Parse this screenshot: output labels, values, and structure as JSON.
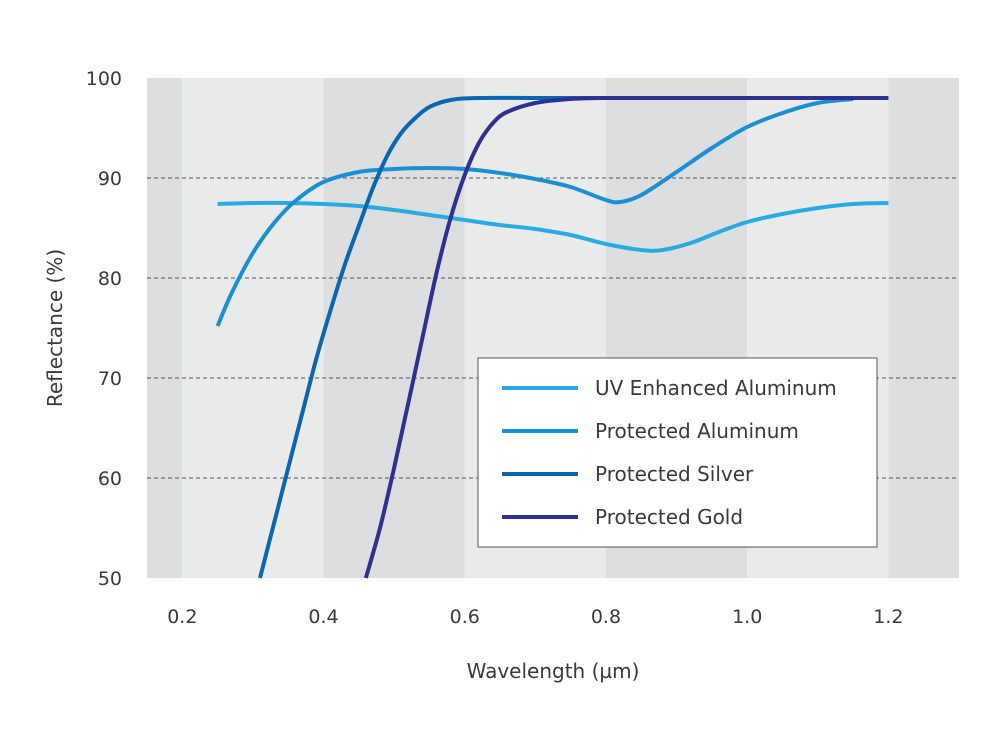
{
  "chart_data": {
    "type": "line",
    "title": "",
    "xlabel": "Wavelength (µm)",
    "ylabel": "Reflectance (%)",
    "xlim": [
      0.15,
      1.3
    ],
    "ylim": [
      50,
      100
    ],
    "x_ticks": [
      0.2,
      0.4,
      0.6,
      0.8,
      1.0,
      1.2
    ],
    "x_tick_labels": [
      "0.2",
      "0.4",
      "0.6",
      "0.8",
      "1.0",
      "1.2"
    ],
    "y_ticks": [
      50,
      60,
      70,
      80,
      90,
      100
    ],
    "y_tick_labels": [
      "50",
      "60",
      "70",
      "80",
      "90",
      "100"
    ],
    "grid": "dashed horizontal lines at 60, 70, 80 and 90",
    "background_bands": "alternating shaded vertical bands every 0.2 µm",
    "legend_position": "lower-right",
    "series": [
      {
        "name": "UV Enhanced Aluminum",
        "color": "#29abe2",
        "points": [
          [
            0.25,
            87.4
          ],
          [
            0.3,
            87.5
          ],
          [
            0.35,
            87.5
          ],
          [
            0.4,
            87.4
          ],
          [
            0.45,
            87.2
          ],
          [
            0.5,
            86.8
          ],
          [
            0.55,
            86.3
          ],
          [
            0.6,
            85.8
          ],
          [
            0.65,
            85.3
          ],
          [
            0.7,
            84.9
          ],
          [
            0.75,
            84.3
          ],
          [
            0.8,
            83.4
          ],
          [
            0.85,
            82.8
          ],
          [
            0.88,
            82.8
          ],
          [
            0.92,
            83.5
          ],
          [
            0.96,
            84.6
          ],
          [
            1.0,
            85.6
          ],
          [
            1.05,
            86.4
          ],
          [
            1.1,
            87.0
          ],
          [
            1.15,
            87.4
          ],
          [
            1.2,
            87.5
          ]
        ]
      },
      {
        "name": "Protected Aluminum",
        "color": "#1b8fd2",
        "points": [
          [
            0.25,
            75.2
          ],
          [
            0.27,
            78.5
          ],
          [
            0.3,
            82.5
          ],
          [
            0.33,
            85.5
          ],
          [
            0.36,
            87.7
          ],
          [
            0.4,
            89.6
          ],
          [
            0.45,
            90.6
          ],
          [
            0.5,
            90.9
          ],
          [
            0.55,
            91.0
          ],
          [
            0.6,
            90.9
          ],
          [
            0.65,
            90.5
          ],
          [
            0.7,
            89.9
          ],
          [
            0.75,
            89.1
          ],
          [
            0.8,
            87.8
          ],
          [
            0.82,
            87.6
          ],
          [
            0.85,
            88.3
          ],
          [
            0.9,
            90.6
          ],
          [
            0.95,
            93.0
          ],
          [
            1.0,
            95.1
          ],
          [
            1.05,
            96.5
          ],
          [
            1.1,
            97.5
          ],
          [
            1.15,
            97.9
          ]
        ]
      },
      {
        "name": "Protected Silver",
        "color": "#0a66b1",
        "points": [
          [
            0.31,
            50
          ],
          [
            0.33,
            55.5
          ],
          [
            0.35,
            61
          ],
          [
            0.37,
            66.5
          ],
          [
            0.39,
            72
          ],
          [
            0.41,
            76.8
          ],
          [
            0.43,
            81.3
          ],
          [
            0.45,
            85.2
          ],
          [
            0.47,
            89
          ],
          [
            0.49,
            92.2
          ],
          [
            0.51,
            94.5
          ],
          [
            0.53,
            96
          ],
          [
            0.55,
            97.1
          ],
          [
            0.58,
            97.8
          ],
          [
            0.62,
            98
          ],
          [
            0.7,
            98
          ],
          [
            0.8,
            98
          ],
          [
            0.9,
            98
          ],
          [
            1.0,
            98
          ],
          [
            1.1,
            98
          ],
          [
            1.2,
            98
          ]
        ]
      },
      {
        "name": "Protected Gold",
        "color": "#2e3192",
        "points": [
          [
            0.46,
            50
          ],
          [
            0.48,
            55
          ],
          [
            0.5,
            61
          ],
          [
            0.52,
            67.5
          ],
          [
            0.54,
            74
          ],
          [
            0.56,
            80.5
          ],
          [
            0.58,
            86
          ],
          [
            0.6,
            90.3
          ],
          [
            0.62,
            93.5
          ],
          [
            0.64,
            95.5
          ],
          [
            0.66,
            96.6
          ],
          [
            0.7,
            97.5
          ],
          [
            0.75,
            97.9
          ],
          [
            0.8,
            98
          ],
          [
            0.9,
            98
          ],
          [
            1.0,
            98
          ],
          [
            1.1,
            98
          ],
          [
            1.2,
            98
          ]
        ]
      }
    ]
  }
}
